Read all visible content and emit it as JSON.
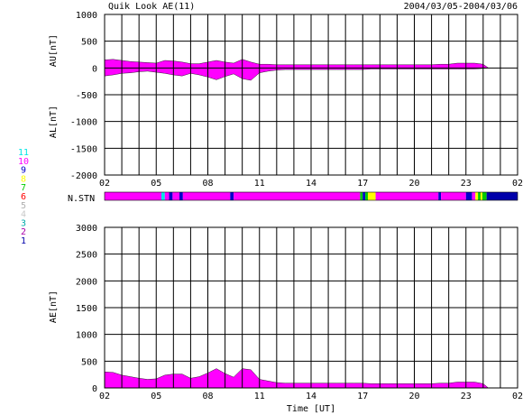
{
  "header": {
    "title": "Quik Look AE(11)",
    "date_range": "2004/03/05-2004/03/06"
  },
  "station_legend": {
    "label": "N.STN",
    "numbers": [
      {
        "text": "11",
        "color": "#00e5e5"
      },
      {
        "text": "10",
        "color": "#ff00ff"
      },
      {
        "text": "9",
        "color": "#0000cc"
      },
      {
        "text": "8",
        "color": "#ffff00"
      },
      {
        "text": "7",
        "color": "#00cc00"
      },
      {
        "text": "6",
        "color": "#ff0000"
      },
      {
        "text": "5",
        "color": "#b0b0b0"
      },
      {
        "text": "4",
        "color": "#c8c8c8"
      },
      {
        "text": "3",
        "color": "#00aaaa"
      },
      {
        "text": "2",
        "color": "#aa00aa"
      },
      {
        "text": "1",
        "color": "#0000aa"
      }
    ],
    "segments": [
      {
        "from": 2.0,
        "to": 5.3,
        "n": 10
      },
      {
        "from": 5.3,
        "to": 5.5,
        "n": 11
      },
      {
        "from": 5.5,
        "to": 5.75,
        "n": 10
      },
      {
        "from": 5.75,
        "to": 5.95,
        "n": 9
      },
      {
        "from": 5.95,
        "to": 6.35,
        "n": 10
      },
      {
        "from": 6.35,
        "to": 6.55,
        "n": 9
      },
      {
        "from": 6.55,
        "to": 9.3,
        "n": 10
      },
      {
        "from": 9.3,
        "to": 9.5,
        "n": 9
      },
      {
        "from": 9.5,
        "to": 16.85,
        "n": 10
      },
      {
        "from": 16.85,
        "to": 17.0,
        "n": 7
      },
      {
        "from": 17.0,
        "to": 17.15,
        "n": 9
      },
      {
        "from": 17.15,
        "to": 17.3,
        "n": 7
      },
      {
        "from": 17.3,
        "to": 17.75,
        "n": 8
      },
      {
        "from": 17.75,
        "to": 21.4,
        "n": 10
      },
      {
        "from": 21.4,
        "to": 21.55,
        "n": 9
      },
      {
        "from": 21.55,
        "to": 23.0,
        "n": 10
      },
      {
        "from": 23.0,
        "to": 23.35,
        "n": 9
      },
      {
        "from": 23.35,
        "to": 23.55,
        "n": 10
      },
      {
        "from": 23.55,
        "to": 23.7,
        "n": 8
      },
      {
        "from": 23.7,
        "to": 23.85,
        "n": 7
      },
      {
        "from": 23.85,
        "to": 23.95,
        "n": 8
      },
      {
        "from": 23.95,
        "to": 24.2,
        "n": 7
      },
      {
        "from": 24.2,
        "to": 26.0,
        "n": 1
      }
    ]
  },
  "chart_data": [
    {
      "type": "area",
      "title": "",
      "xlabel": "",
      "ylabel_top": "AU[nT]",
      "ylabel_bottom": "AL[nT]",
      "ylim": [
        -2000,
        1000
      ],
      "yticks": [
        1000,
        500,
        0,
        -500,
        -1000,
        -1500,
        -2000
      ],
      "xlim": [
        2,
        26
      ],
      "xticks": [
        "02",
        "05",
        "08",
        "11",
        "14",
        "17",
        "20",
        "23",
        "02"
      ],
      "grid": true,
      "x": [
        2,
        2.5,
        3,
        3.5,
        4,
        4.5,
        5,
        5.5,
        6,
        6.5,
        7,
        7.5,
        8,
        8.5,
        9,
        9.5,
        10,
        10.5,
        11,
        11.5,
        12,
        12.5,
        13,
        13.5,
        14,
        14.5,
        15,
        15.5,
        16,
        16.5,
        17,
        17.5,
        18,
        18.5,
        19,
        19.5,
        20,
        20.5,
        21,
        21.5,
        22,
        22.5,
        23,
        23.5,
        24,
        24.3
      ],
      "series": [
        {
          "key": "AU",
          "color": "#ff00ff",
          "values": [
            150,
            160,
            140,
            120,
            110,
            100,
            90,
            140,
            130,
            110,
            80,
            80,
            110,
            140,
            110,
            90,
            160,
            110,
            70,
            70,
            60,
            60,
            60,
            60,
            60,
            60,
            60,
            60,
            60,
            60,
            60,
            60,
            60,
            60,
            60,
            60,
            60,
            60,
            60,
            70,
            70,
            90,
            90,
            90,
            70,
            0
          ]
        },
        {
          "key": "AL",
          "color": "#ff00ff",
          "values": [
            -150,
            -130,
            -100,
            -90,
            -70,
            -60,
            -80,
            -100,
            -130,
            -150,
            -100,
            -130,
            -170,
            -220,
            -160,
            -110,
            -200,
            -230,
            -90,
            -60,
            -40,
            -30,
            -30,
            -30,
            -30,
            -30,
            -30,
            -30,
            -30,
            -30,
            -30,
            -20,
            -20,
            -20,
            -20,
            -20,
            -20,
            -20,
            -20,
            -20,
            -20,
            -20,
            -20,
            -20,
            -10,
            0
          ]
        }
      ]
    },
    {
      "type": "area",
      "title": "",
      "xlabel": "Time [UT]",
      "ylabel": "AE[nT]",
      "ylim": [
        0,
        3000
      ],
      "yticks": [
        3000,
        2500,
        2000,
        1500,
        1000,
        500,
        0
      ],
      "xlim": [
        2,
        26
      ],
      "xticks": [
        "02",
        "05",
        "08",
        "11",
        "14",
        "17",
        "20",
        "23",
        "02"
      ],
      "grid": true,
      "x": [
        2,
        2.5,
        3,
        3.5,
        4,
        4.5,
        5,
        5.5,
        6,
        6.5,
        7,
        7.5,
        8,
        8.5,
        9,
        9.5,
        10,
        10.5,
        11,
        11.5,
        12,
        12.5,
        13,
        13.5,
        14,
        14.5,
        15,
        15.5,
        16,
        16.5,
        17,
        17.5,
        18,
        18.5,
        19,
        19.5,
        20,
        20.5,
        21,
        21.5,
        22,
        22.5,
        23,
        23.5,
        24,
        24.3
      ],
      "series": [
        {
          "key": "AE",
          "color": "#ff00ff",
          "values": [
            300,
            290,
            240,
            210,
            180,
            160,
            170,
            240,
            260,
            260,
            180,
            210,
            280,
            360,
            270,
            200,
            360,
            340,
            160,
            130,
            100,
            90,
            90,
            90,
            90,
            90,
            90,
            90,
            90,
            90,
            90,
            80,
            80,
            80,
            80,
            80,
            80,
            80,
            80,
            90,
            90,
            110,
            110,
            110,
            80,
            0
          ]
        }
      ]
    }
  ]
}
